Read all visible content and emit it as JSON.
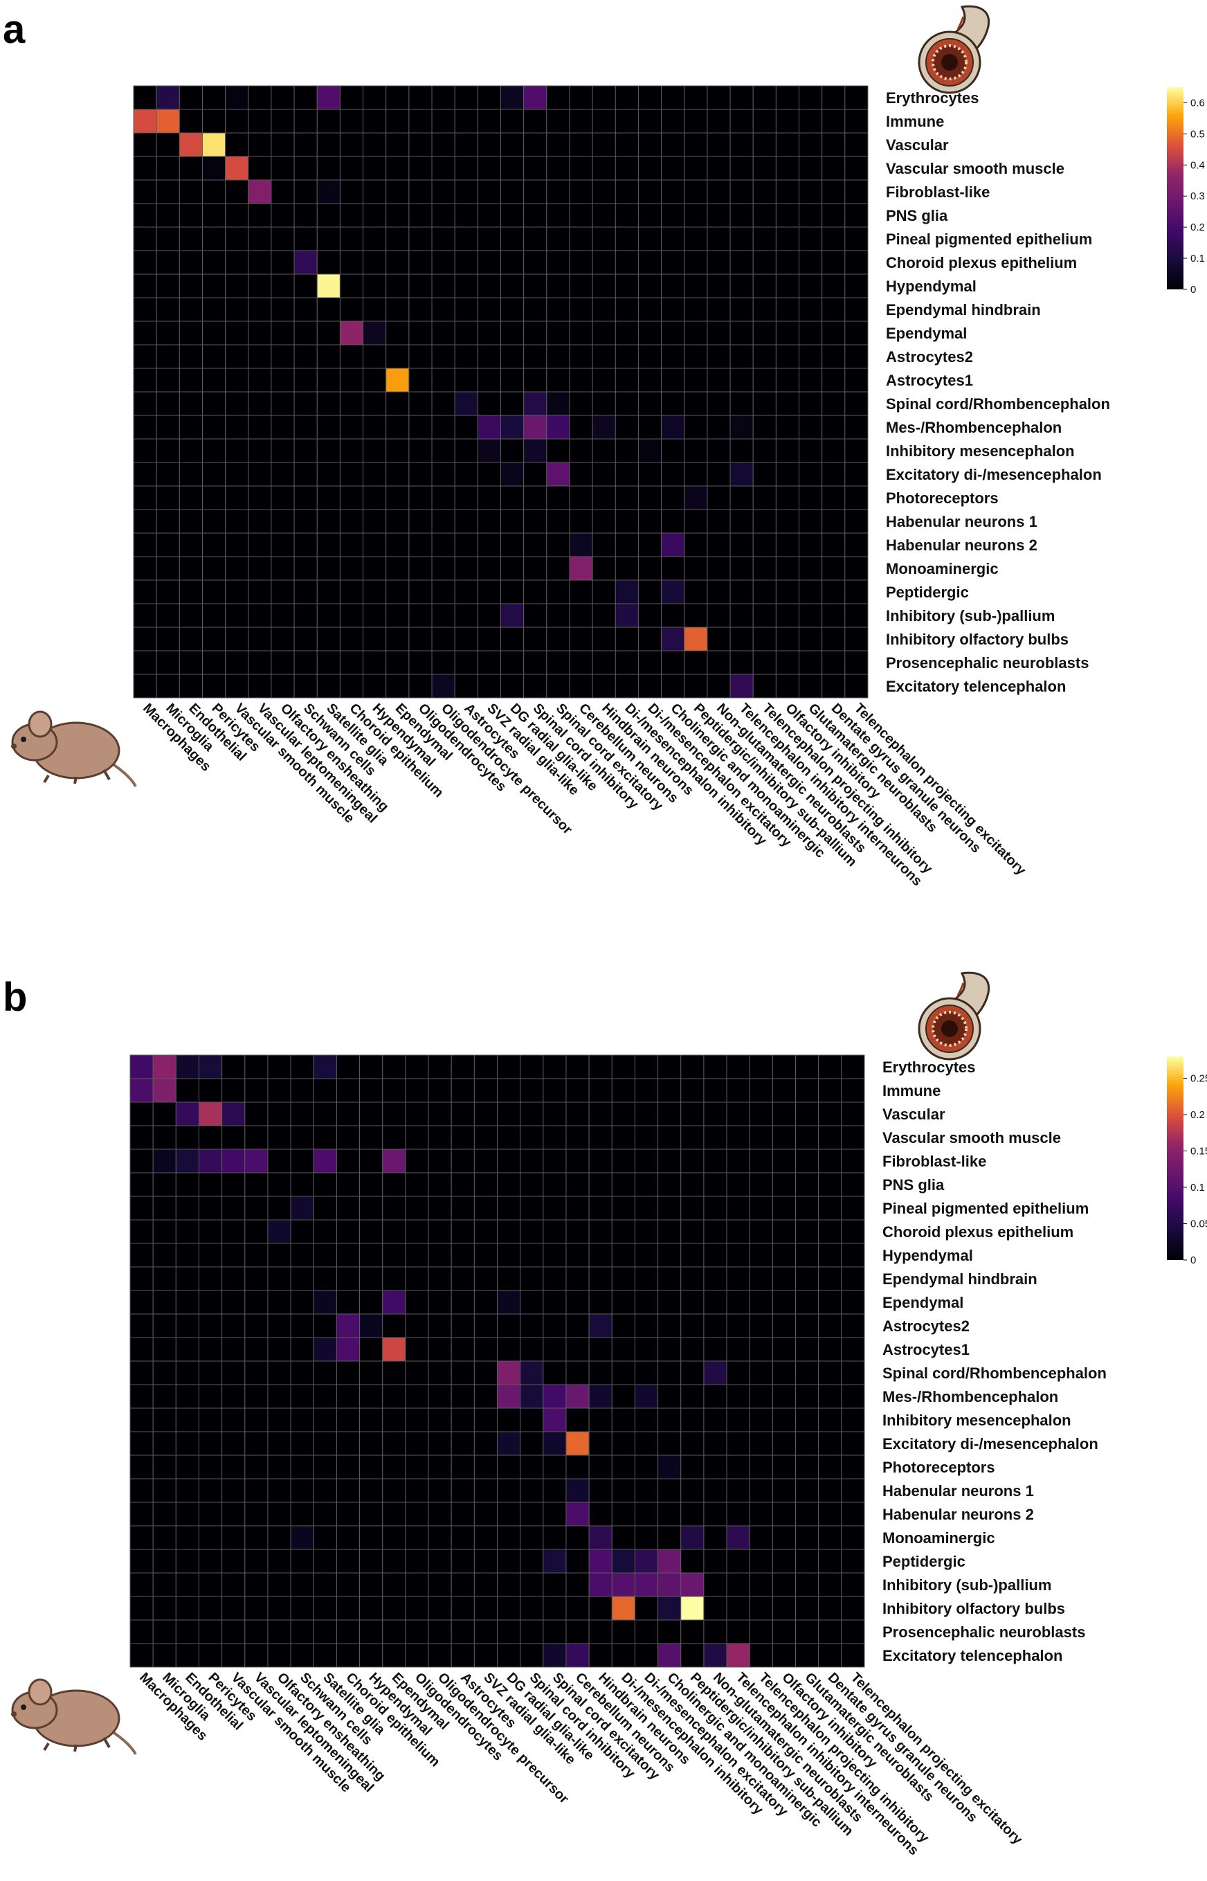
{
  "chart_data": [
    {
      "type": "heatmap",
      "panel": "a",
      "colormap": "inferno",
      "colorbar": {
        "min": 0,
        "max": 0.65,
        "ticks": [
          0,
          0.1,
          0.2,
          0.3,
          0.4,
          0.5,
          0.6
        ],
        "tick_labels": [
          "0",
          "0.1",
          "0.2",
          "0.3",
          "0.4",
          "0.5",
          "0.6"
        ]
      },
      "cells": [
        [
          0,
          1,
          0.12
        ],
        [
          0,
          4,
          0.02
        ],
        [
          0,
          8,
          0.22
        ],
        [
          0,
          16,
          0.05
        ],
        [
          0,
          17,
          0.22
        ],
        [
          1,
          0,
          0.45
        ],
        [
          1,
          1,
          0.48
        ],
        [
          2,
          2,
          0.45
        ],
        [
          2,
          3,
          0.62
        ],
        [
          3,
          3,
          0.02
        ],
        [
          3,
          4,
          0.45
        ],
        [
          4,
          5,
          0.33
        ],
        [
          4,
          8,
          0.03
        ],
        [
          7,
          7,
          0.15
        ],
        [
          8,
          8,
          0.64
        ],
        [
          10,
          9,
          0.36
        ],
        [
          10,
          10,
          0.05
        ],
        [
          12,
          11,
          0.55
        ],
        [
          13,
          14,
          0.08
        ],
        [
          13,
          17,
          0.12
        ],
        [
          13,
          18,
          0.03
        ],
        [
          14,
          15,
          0.17
        ],
        [
          14,
          16,
          0.1
        ],
        [
          14,
          17,
          0.28
        ],
        [
          14,
          18,
          0.18
        ],
        [
          14,
          20,
          0.05
        ],
        [
          14,
          23,
          0.06
        ],
        [
          14,
          26,
          0.03
        ],
        [
          15,
          15,
          0.04
        ],
        [
          15,
          17,
          0.06
        ],
        [
          15,
          22,
          0.02
        ],
        [
          16,
          16,
          0.04
        ],
        [
          16,
          18,
          0.25
        ],
        [
          16,
          26,
          0.08
        ],
        [
          17,
          24,
          0.04
        ],
        [
          19,
          19,
          0.05
        ],
        [
          19,
          23,
          0.17
        ],
        [
          20,
          19,
          0.33
        ],
        [
          21,
          21,
          0.08
        ],
        [
          21,
          23,
          0.09
        ],
        [
          22,
          16,
          0.12
        ],
        [
          22,
          21,
          0.11
        ],
        [
          23,
          23,
          0.12
        ],
        [
          23,
          24,
          0.48
        ],
        [
          25,
          13,
          0.05
        ],
        [
          25,
          26,
          0.15
        ]
      ]
    },
    {
      "type": "heatmap",
      "panel": "b",
      "colormap": "inferno",
      "colorbar": {
        "min": 0,
        "max": 0.28,
        "ticks": [
          0,
          0.05,
          0.1,
          0.15,
          0.2,
          0.25
        ],
        "tick_labels": [
          "0",
          "0.05",
          "0.1",
          "0.15",
          "0.2",
          "0.25"
        ]
      },
      "cells": [
        [
          0,
          0,
          0.08
        ],
        [
          0,
          1,
          0.15
        ],
        [
          0,
          2,
          0.03
        ],
        [
          0,
          3,
          0.04
        ],
        [
          0,
          8,
          0.04
        ],
        [
          1,
          0,
          0.09
        ],
        [
          1,
          1,
          0.14
        ],
        [
          2,
          2,
          0.07
        ],
        [
          2,
          3,
          0.17
        ],
        [
          2,
          4,
          0.06
        ],
        [
          4,
          1,
          0.02
        ],
        [
          4,
          2,
          0.04
        ],
        [
          4,
          3,
          0.07
        ],
        [
          4,
          4,
          0.08
        ],
        [
          4,
          5,
          0.09
        ],
        [
          4,
          8,
          0.09
        ],
        [
          4,
          11,
          0.12
        ],
        [
          6,
          7,
          0.03
        ],
        [
          7,
          6,
          0.03
        ],
        [
          10,
          8,
          0.02
        ],
        [
          10,
          11,
          0.08
        ],
        [
          10,
          16,
          0.02
        ],
        [
          11,
          9,
          0.09
        ],
        [
          11,
          10,
          0.02
        ],
        [
          11,
          20,
          0.04
        ],
        [
          12,
          8,
          0.03
        ],
        [
          12,
          9,
          0.09
        ],
        [
          12,
          11,
          0.19
        ],
        [
          13,
          16,
          0.14
        ],
        [
          13,
          17,
          0.04
        ],
        [
          13,
          25,
          0.05
        ],
        [
          14,
          16,
          0.12
        ],
        [
          14,
          17,
          0.04
        ],
        [
          14,
          18,
          0.08
        ],
        [
          14,
          19,
          0.12
        ],
        [
          14,
          20,
          0.03
        ],
        [
          14,
          22,
          0.03
        ],
        [
          15,
          18,
          0.09
        ],
        [
          16,
          16,
          0.03
        ],
        [
          16,
          18,
          0.03
        ],
        [
          16,
          19,
          0.21
        ],
        [
          17,
          23,
          0.02
        ],
        [
          18,
          19,
          0.03
        ],
        [
          19,
          19,
          0.09
        ],
        [
          20,
          7,
          0.02
        ],
        [
          20,
          20,
          0.06
        ],
        [
          20,
          24,
          0.05
        ],
        [
          20,
          26,
          0.06
        ],
        [
          21,
          18,
          0.04
        ],
        [
          21,
          20,
          0.09
        ],
        [
          21,
          21,
          0.04
        ],
        [
          21,
          22,
          0.06
        ],
        [
          21,
          23,
          0.12
        ],
        [
          22,
          20,
          0.09
        ],
        [
          22,
          21,
          0.1
        ],
        [
          22,
          22,
          0.1
        ],
        [
          22,
          23,
          0.11
        ],
        [
          22,
          24,
          0.12
        ],
        [
          23,
          21,
          0.21
        ],
        [
          23,
          24,
          0.28
        ],
        [
          23,
          23,
          0.04
        ],
        [
          25,
          19,
          0.07
        ],
        [
          25,
          23,
          0.1
        ],
        [
          25,
          25,
          0.05
        ],
        [
          25,
          26,
          0.16
        ],
        [
          25,
          18,
          0.03
        ]
      ]
    }
  ],
  "figure": {
    "rows": [
      "Erythrocytes",
      "Immune",
      "Vascular",
      "Vascular smooth muscle",
      "Fibroblast-like",
      "PNS glia",
      "Pineal pigmented epithelium",
      "Choroid plexus epithelium",
      "Hypendymal",
      "Ependymal hindbrain",
      "Ependymal",
      "Astrocytes2",
      "Astrocytes1",
      "Spinal cord/Rhombencephalon",
      "Mes-/Rhombencephalon",
      "Inhibitory mesencephalon",
      "Excitatory di-/mesencephalon",
      "Photoreceptors",
      "Habenular neurons 1",
      "Habenular neurons 2",
      "Monoaminergic",
      "Peptidergic",
      "Inhibitory (sub-)pallium",
      "Inhibitory olfactory bulbs",
      "Prosencephalic neuroblasts",
      "Excitatory telencephalon"
    ],
    "columns": [
      "Macrophages",
      "Microglia",
      "Endothelial",
      "Pericytes",
      "Vascular smooth muscle",
      "Vascular leptomeningeal",
      "Olfactory ensheathing",
      "Schwann cells",
      "Satellite glia",
      "Choroid epithelium",
      "Hypendymal",
      "Ependymal",
      "Oligodendrocytes",
      "Oligodendrocyte precursor",
      "Astrocytes",
      "SVZ radial glia-like",
      "DG radial glia-like",
      "Spinal cord inhibitory",
      "Spinal cord excitatory",
      "Cerebellum neurons",
      "Hindbrain neurons",
      "Di-/mesencephalon inhibitory",
      "Di-/mesencephalon excitatory",
      "Cholinergic and monoaminergic",
      "Peptidergic/inhibitory sub-pallium",
      "Non-glutamatergic neuroblasts",
      "Telencephalon inhibitory interneurons",
      "Telencephalon projecting inhibitory",
      "Olfactory inhibitory",
      "Glutamatergic neuroblasts",
      "Dentate gyrus granule neurons",
      "Telencephalon projecting excitatory"
    ],
    "panel_letters": [
      "a",
      "b"
    ]
  },
  "colors": {
    "grid_line": "#5c5c5c",
    "mouse_body": "#b89079",
    "mouse_tail": "#8a6a58",
    "lamprey_body": "#d8c9b4",
    "lamprey_ring": "#9a3a1e"
  }
}
